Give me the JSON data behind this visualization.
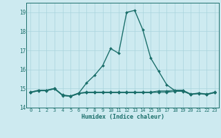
{
  "xlabel": "Humidex (Indice chaleur)",
  "background_color": "#cdeaf0",
  "grid_color": "#a8d4dc",
  "line_color": "#1a6e6a",
  "x_hours": [
    0,
    1,
    2,
    3,
    4,
    5,
    6,
    7,
    8,
    9,
    10,
    11,
    12,
    13,
    14,
    15,
    16,
    17,
    18,
    19,
    20,
    21,
    22,
    23
  ],
  "series": [
    [
      14.8,
      14.9,
      14.9,
      15.0,
      14.65,
      14.6,
      14.75,
      15.3,
      15.7,
      16.2,
      17.1,
      16.85,
      19.0,
      19.1,
      18.1,
      16.6,
      15.9,
      15.2,
      14.9,
      14.9,
      14.7,
      14.75,
      14.7,
      14.8
    ],
    [
      14.8,
      14.9,
      14.9,
      15.0,
      14.65,
      14.6,
      14.75,
      14.8,
      14.8,
      14.8,
      14.8,
      14.8,
      14.8,
      14.8,
      14.8,
      14.8,
      14.8,
      14.8,
      14.85,
      14.85,
      14.7,
      14.75,
      14.7,
      14.8
    ],
    [
      14.82,
      14.92,
      14.92,
      15.02,
      14.67,
      14.62,
      14.77,
      14.82,
      14.82,
      14.82,
      14.82,
      14.82,
      14.82,
      14.82,
      14.82,
      14.82,
      14.88,
      14.88,
      14.92,
      14.92,
      14.72,
      14.77,
      14.72,
      14.82
    ],
    [
      14.78,
      14.88,
      14.88,
      14.98,
      14.63,
      14.58,
      14.73,
      14.78,
      14.78,
      14.78,
      14.78,
      14.78,
      14.78,
      14.78,
      14.78,
      14.78,
      14.84,
      14.84,
      14.88,
      14.88,
      14.68,
      14.73,
      14.68,
      14.78
    ]
  ],
  "ylim": [
    14.0,
    19.5
  ],
  "yticks": [
    14,
    15,
    16,
    17,
    18,
    19
  ],
  "xtick_labels": [
    "0",
    "1",
    "2",
    "3",
    "4",
    "5",
    "6",
    "7",
    "8",
    "9",
    "10",
    "11",
    "12",
    "13",
    "14",
    "15",
    "16",
    "17",
    "18",
    "19",
    "20",
    "21",
    "22",
    "23"
  ],
  "markersize": 2.0,
  "lw_main": 1.0,
  "lw_other": 0.7
}
